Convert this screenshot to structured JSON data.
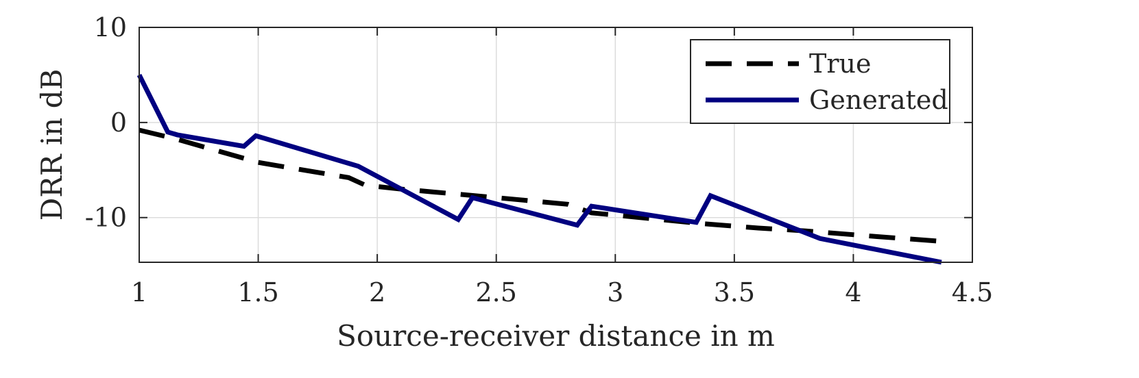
{
  "chart_data": {
    "type": "line",
    "title": "",
    "xlabel": "Source-receiver distance in m",
    "ylabel": "DRR in dB",
    "xlim": [
      1,
      4.5
    ],
    "ylim": [
      -14.7,
      10
    ],
    "xticks": [
      "1",
      "1.5",
      "2",
      "2.5",
      "3",
      "3.5",
      "4",
      "4.5"
    ],
    "xtick_values": [
      1,
      1.5,
      2,
      2.5,
      3,
      3.5,
      4,
      4.5
    ],
    "yticks": [
      "10",
      "0",
      "-10"
    ],
    "ytick_values": [
      10,
      0,
      -10
    ],
    "grid": true,
    "legend_position": "top-right",
    "series": [
      {
        "name": "True",
        "color": "#000000",
        "style": "dashed",
        "x": [
          1.0,
          1.15,
          1.5,
          1.88,
          1.95,
          2.1,
          2.5,
          2.8,
          2.9,
          3.35,
          3.6,
          3.8,
          4.1,
          4.37
        ],
        "y": [
          -0.8,
          -1.7,
          -4.2,
          -5.8,
          -6.6,
          -7.0,
          -7.9,
          -8.6,
          -9.5,
          -10.6,
          -11.1,
          -11.4,
          -12.0,
          -12.5
        ]
      },
      {
        "name": "Generated",
        "color": "#000080",
        "style": "solid",
        "x": [
          1.0,
          1.12,
          1.16,
          1.44,
          1.49,
          1.92,
          2.34,
          2.4,
          2.84,
          2.9,
          3.34,
          3.4,
          3.86,
          4.37
        ],
        "y": [
          5.0,
          -1.0,
          -1.3,
          -2.5,
          -1.4,
          -4.6,
          -10.2,
          -7.9,
          -10.8,
          -8.8,
          -10.5,
          -7.7,
          -12.2,
          -14.7
        ]
      }
    ]
  }
}
